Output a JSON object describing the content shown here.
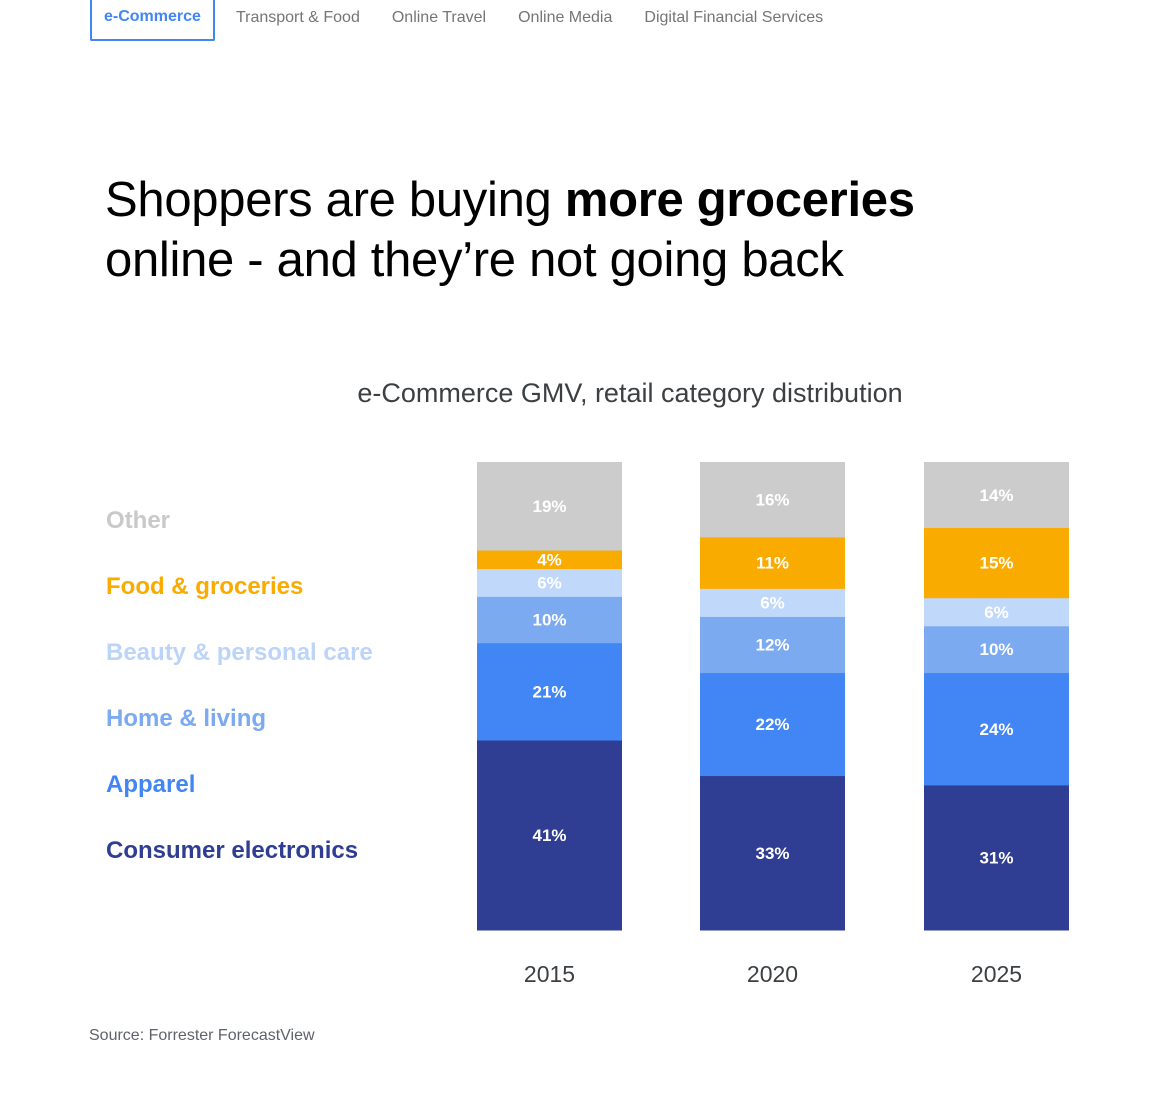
{
  "tabs": [
    {
      "label": "e-Commerce",
      "active": true
    },
    {
      "label": "Transport & Food",
      "active": false
    },
    {
      "label": "Online Travel",
      "active": false
    },
    {
      "label": "Online Media",
      "active": false
    },
    {
      "label": "Digital Financial Services",
      "active": false
    }
  ],
  "headline": {
    "part1": "Shoppers are buying ",
    "emphasis": "more groceries",
    "part2": "online - and they’re not going back"
  },
  "source": "Source: Forrester ForecastView",
  "chart_data": {
    "type": "bar",
    "stacked": true,
    "title": "e-Commerce GMV, retail category distribution",
    "categories": [
      "2015",
      "2020",
      "2025"
    ],
    "xlabel": "",
    "ylabel": "",
    "ylim": [
      0,
      100
    ],
    "unit": "%",
    "series": [
      {
        "name": "Consumer electronics",
        "color": "#2f3e93",
        "label_color": "#ffffff",
        "values": [
          41,
          33,
          31
        ]
      },
      {
        "name": "Apparel",
        "color": "#4285f4",
        "label_color": "#ffffff",
        "values": [
          21,
          22,
          24
        ]
      },
      {
        "name": "Home & living",
        "color": "#7baaf0",
        "label_color": "#ffffff",
        "values": [
          10,
          12,
          10
        ]
      },
      {
        "name": "Beauty & personal care",
        "color": "#c0d8fa",
        "label_color": "#ffffff",
        "values": [
          6,
          6,
          6
        ]
      },
      {
        "name": "Food & groceries",
        "color": "#f9ab00",
        "label_color": "#ffffff",
        "values": [
          4,
          11,
          15
        ]
      },
      {
        "name": "Other",
        "color": "#cccccc",
        "label_color": "#ffffff",
        "values": [
          19,
          16,
          14
        ]
      }
    ],
    "legend": [
      {
        "name": "Other",
        "color": "#c9c9c9"
      },
      {
        "name": "Food & groceries",
        "color": "#f9ab00"
      },
      {
        "name": "Beauty & personal care",
        "color": "#bcd4f8"
      },
      {
        "name": "Home & living",
        "color": "#7baaf0"
      },
      {
        "name": "Apparel",
        "color": "#4285f4"
      },
      {
        "name": "Consumer electronics",
        "color": "#2f3e93"
      }
    ]
  }
}
